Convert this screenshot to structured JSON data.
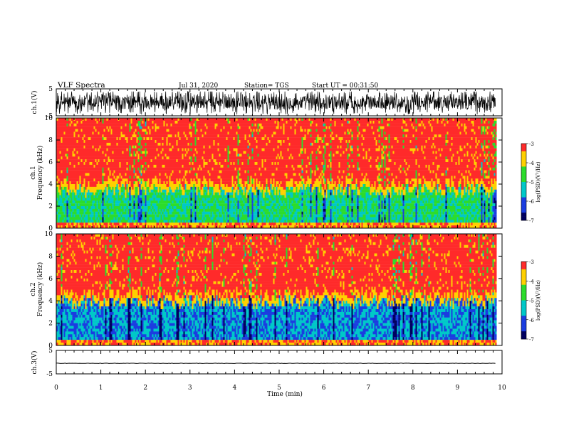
{
  "header": {
    "title": "VLF Spectra",
    "date": "Jul 31, 2020",
    "station": "Station= TGS",
    "start": "Start UT = 00:31:50"
  },
  "chart_data": [
    {
      "id": "ch1-waveform",
      "type": "line",
      "ylabel": "ch.1(V)",
      "xlim": [
        0,
        10
      ],
      "ylim": [
        -5,
        5
      ],
      "yticks": [
        -5,
        5
      ],
      "description_values": {
        "envelope_min": -4.5,
        "envelope_max": 4.0,
        "mean": 0.0
      }
    },
    {
      "id": "ch1-spectrogram",
      "type": "heatmap",
      "ylabel": "ch.1 Frequency (kHz)",
      "xlim": [
        0,
        10
      ],
      "ylim": [
        0,
        10
      ],
      "yticks": [
        0,
        2,
        4,
        6,
        8,
        10
      ],
      "colorbar": {
        "label": "log(PSD)(V²/Hz)",
        "range": [
          -7,
          -3
        ],
        "ticks": [
          -7,
          -6,
          -5,
          -4,
          -3
        ]
      },
      "band_transition_khz": 4.0
    },
    {
      "id": "ch2-spectrogram",
      "type": "heatmap",
      "ylabel": "ch.2 Frequency (kHz)",
      "xlim": [
        0,
        10
      ],
      "ylim": [
        0,
        10
      ],
      "yticks": [
        0,
        2,
        4,
        6,
        8,
        10
      ],
      "colorbar": {
        "label": "log(PSD)(V²/Hz)",
        "range": [
          -7,
          -3
        ],
        "ticks": [
          -7,
          -6,
          -5,
          -4,
          -3
        ]
      },
      "band_transition_khz": 4.5
    },
    {
      "id": "ch3-waveform",
      "type": "line",
      "ylabel": "ch.3(V)",
      "xlim": [
        0,
        10
      ],
      "ylim": [
        -5,
        5
      ],
      "yticks": [
        -5,
        5
      ],
      "description_values": {
        "level": -0.5
      }
    }
  ],
  "xaxis": {
    "label": "Time (min)",
    "ticks": [
      "0",
      "1",
      "2",
      "3",
      "4",
      "5",
      "6",
      "7",
      "8",
      "9",
      "10"
    ],
    "data_end_min": 9.85
  },
  "colors": {
    "red": "#ff2a2a",
    "yellow": "#ffd000",
    "green": "#2cdc2c",
    "cyan": "#00c8c8",
    "blue": "#1b3de0",
    "navy": "#000060"
  }
}
